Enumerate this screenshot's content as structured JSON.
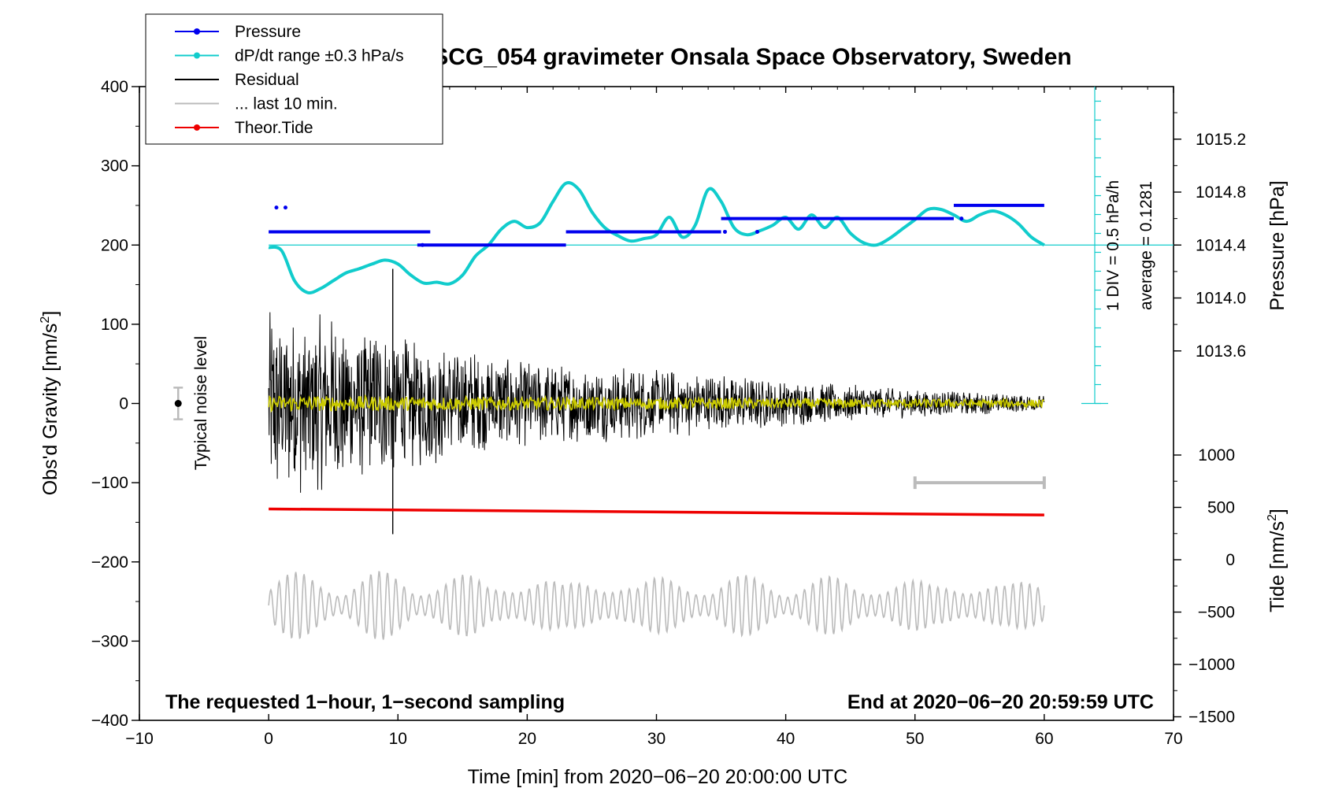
{
  "chart_data": {
    "type": "line",
    "title": "SCG_054 gravimeter Onsala Space Observatory, Sweden",
    "xlabel": "Time [min] from 2020−06−20 20:00:00 UTC",
    "ylabel_left": "Obs'd Gravity [nm/s",
    "ylabel_left_sup": "2",
    "ylabel_left_end": "]",
    "ylabel_right_pressure": "Pressure [hPa]",
    "ylabel_right_tide": "Tide [nm/s",
    "ylabel_right_tide_sup": "2",
    "ylabel_right_tide_end": "]",
    "xlim": [
      -10,
      70
    ],
    "ylim": [
      -400,
      400
    ],
    "x_ticks": [
      "−10",
      "0",
      "10",
      "20",
      "30",
      "40",
      "50",
      "60",
      "70"
    ],
    "y_ticks": [
      "400",
      "300",
      "200",
      "100",
      "0",
      "−100",
      "−200",
      "−300",
      "−400"
    ],
    "pressure_ticks": [
      "1015.2",
      "1014.8",
      "1014.4",
      "1014.0",
      "1013.6"
    ],
    "pressure_range": [
      1013.6,
      1015.2
    ],
    "tide_ticks": [
      "1000",
      "500",
      "0",
      "−500",
      "−1000",
      "−1500"
    ],
    "tide_range": [
      -1500,
      1000
    ],
    "legend": [
      {
        "label": "Pressure",
        "color": "#0000ee",
        "marker": true
      },
      {
        "label": "dP/dt range ±0.3 hPa/s",
        "color": "#11cccc",
        "marker": true
      },
      {
        "label": "Residual",
        "color": "#000000",
        "marker": false
      },
      {
        "label": "... last 10 min.",
        "color": "#bbbbbb",
        "marker": false
      },
      {
        "label": "Theor.Tide",
        "color": "#ee0000",
        "marker": true
      }
    ],
    "noise_label": "Typical noise level",
    "div_label": "1 DIV = 0.5 hPa/h",
    "average_label": "average = 0.1281",
    "footer_left": "The requested 1−hour, 1−second sampling",
    "footer_right": "End at 2020−06−20 20:59:59 UTC",
    "series": [
      {
        "name": "Pressure",
        "color": "#0000ee",
        "unit": "hPa",
        "steps": [
          {
            "x0": 0,
            "x1": 12.5,
            "value": 1014.5
          },
          {
            "x0": 11.5,
            "x1": 23,
            "value": 1014.4
          },
          {
            "x0": 23,
            "x1": 35,
            "value": 1014.5
          },
          {
            "x0": 35,
            "x1": 53,
            "value": 1014.6
          },
          {
            "x0": 53,
            "x1": 60,
            "value": 1014.7
          }
        ]
      },
      {
        "name": "dP/dt range ±0.3 hPa/s",
        "color": "#11cccc",
        "unit": "nm/s2-plot",
        "x": [
          0,
          1,
          2,
          3,
          4,
          5,
          6,
          7,
          8,
          9,
          10,
          11,
          12,
          13,
          14,
          15,
          16,
          17,
          18,
          19,
          20,
          21,
          22,
          23,
          24,
          25,
          26,
          27,
          28,
          29,
          30,
          31,
          32,
          33,
          34,
          35,
          36,
          37,
          38,
          39,
          40,
          41,
          42,
          43,
          44,
          45,
          46,
          47,
          48,
          49,
          50,
          51,
          52,
          53,
          54,
          55,
          56,
          57,
          58,
          59,
          60
        ],
        "y": [
          197,
          193,
          155,
          140,
          145,
          155,
          165,
          170,
          176,
          181,
          176,
          162,
          152,
          153,
          151,
          162,
          186,
          200,
          220,
          230,
          222,
          228,
          255,
          278,
          270,
          242,
          222,
          212,
          205,
          208,
          213,
          235,
          210,
          225,
          270,
          255,
          222,
          213,
          218,
          225,
          235,
          220,
          238,
          222,
          235,
          215,
          203,
          200,
          208,
          220,
          232,
          245,
          245,
          238,
          230,
          238,
          243,
          238,
          227,
          210,
          200
        ]
      },
      {
        "name": "Residual",
        "color": "#000000",
        "unit": "nm/s2",
        "envelope": [
          {
            "x": 0,
            "amp": 125
          },
          {
            "x": 5,
            "amp": 110
          },
          {
            "x": 10,
            "amp": 90
          },
          {
            "x": 15,
            "amp": 70
          },
          {
            "x": 20,
            "amp": 55
          },
          {
            "x": 30,
            "amp": 45
          },
          {
            "x": 40,
            "amp": 30
          },
          {
            "x": 50,
            "amp": 18
          },
          {
            "x": 60,
            "amp": 10
          }
        ]
      },
      {
        "name": "Residual (smoothed)",
        "color": "#cccc00",
        "unit": "nm/s2",
        "envelope": [
          {
            "x": 0,
            "amp": 10
          },
          {
            "x": 60,
            "amp": 5
          }
        ]
      },
      {
        "name": "Theor.Tide",
        "color": "#ee0000",
        "unit": "nm/s2",
        "x": [
          0,
          60
        ],
        "y": [
          500,
          450
        ]
      },
      {
        "name": "Seismic trace",
        "color": "#bbbbbb",
        "unit": "nm/s2",
        "center": -255,
        "amplitude": 45,
        "x": [
          0,
          60
        ]
      }
    ],
    "last_10_min_marker": {
      "x0": 50,
      "x1": 60,
      "y": -100
    },
    "noise_level": {
      "x": -7,
      "y": 0,
      "ymin": -20,
      "ymax": 20
    }
  }
}
